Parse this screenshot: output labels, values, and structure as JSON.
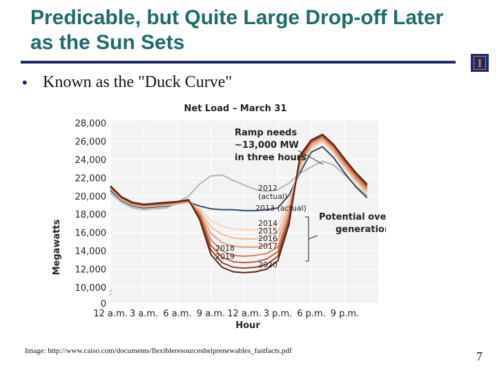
{
  "slide": {
    "title": "Predicable, but Quite Large Drop-off Later as the Sun Sets",
    "bullet": "Known as the \"Duck Curve\"",
    "caption": "Image: http://www.caiso.com/documents/flexibleresourceshelprenewables_fastfacts.pdf",
    "page_number": "7",
    "logo_letter": "I",
    "colors": {
      "title": "#1f6b6b",
      "rule": "#1c2a6b",
      "logo_bg": "#1c2a6b",
      "logo_accent": "#e57a30"
    }
  },
  "chart_data": {
    "type": "line",
    "title": "Net Load – March 31",
    "xlabel": "Hour",
    "ylabel": "Megawatts",
    "x_ticks": [
      "12 a.m.",
      "3 a.m.",
      "6 a.m.",
      "9 a.m.",
      "12 a.m.",
      "3 p.m.",
      "6 p.m.",
      "9 p.m."
    ],
    "y_ticks": [
      "0",
      "10,000",
      "12,000",
      "14,000",
      "16,000",
      "18,000",
      "20,000",
      "22,000",
      "24,000",
      "26,000",
      "28,000"
    ],
    "ylim": [
      0,
      28000
    ],
    "grid": true,
    "x": [
      0,
      1,
      2,
      3,
      4,
      5,
      6,
      7,
      8,
      9,
      10,
      11,
      12,
      13,
      14,
      15,
      16,
      17,
      18,
      19,
      20,
      21,
      22,
      23
    ],
    "series": [
      {
        "name": "2012 (actual)",
        "color": "#b4b4b4",
        "values": [
          20300,
          19300,
          18700,
          18500,
          18600,
          18700,
          19300,
          20000,
          21300,
          22200,
          22300,
          21700,
          21200,
          20700,
          20500,
          20700,
          21400,
          22500,
          23200,
          23800,
          23400,
          22300,
          21100,
          20000
        ]
      },
      {
        "name": "2013 (actual)",
        "color": "#2e4a6a",
        "values": [
          20600,
          19500,
          18900,
          18700,
          18800,
          18900,
          19100,
          19300,
          18900,
          18600,
          18500,
          18500,
          18400,
          18400,
          18500,
          18700,
          20100,
          22600,
          24800,
          25400,
          24200,
          22500,
          21000,
          19800
        ]
      },
      {
        "name": "2014",
        "color": "#f6d6bc",
        "values": [
          20800,
          19600,
          19000,
          18800,
          18900,
          19000,
          19100,
          19300,
          18600,
          17300,
          16700,
          16400,
          16300,
          16300,
          16500,
          16900,
          19500,
          23000,
          25200,
          25900,
          24700,
          23000,
          21500,
          20200
        ]
      },
      {
        "name": "2015",
        "color": "#efbd99",
        "values": [
          20850,
          19650,
          19050,
          18850,
          18950,
          19050,
          19150,
          19350,
          18400,
          16600,
          15800,
          15400,
          15300,
          15300,
          15500,
          16000,
          19000,
          23300,
          25400,
          26100,
          24900,
          23200,
          21700,
          20400
        ]
      },
      {
        "name": "2016",
        "color": "#e3a07a",
        "values": [
          20900,
          19700,
          19100,
          18900,
          19000,
          19100,
          19200,
          19400,
          18200,
          15900,
          14900,
          14500,
          14400,
          14400,
          14600,
          15200,
          18500,
          23600,
          25600,
          26300,
          25100,
          23400,
          21900,
          20600
        ]
      },
      {
        "name": "2017",
        "color": "#d2845e",
        "values": [
          20950,
          19750,
          19150,
          18950,
          19050,
          19150,
          19250,
          19450,
          18000,
          15200,
          14000,
          13500,
          13400,
          13500,
          13700,
          14400,
          18000,
          23900,
          25800,
          26450,
          25300,
          23600,
          22100,
          20800
        ]
      },
      {
        "name": "2018",
        "color": "#b9603f",
        "values": [
          21000,
          19800,
          19200,
          19000,
          19100,
          19200,
          19300,
          19500,
          17800,
          14600,
          13300,
          12800,
          12700,
          12800,
          13100,
          13900,
          17600,
          24100,
          25950,
          26550,
          25450,
          23800,
          22300,
          21000
        ]
      },
      {
        "name": "2019",
        "color": "#953f27",
        "values": [
          21050,
          19850,
          19250,
          19050,
          19150,
          19250,
          19350,
          19550,
          17600,
          14100,
          12700,
          12200,
          12100,
          12200,
          12500,
          13400,
          17200,
          24300,
          26050,
          26650,
          25550,
          23950,
          22450,
          21150
        ]
      },
      {
        "name": "2020",
        "color": "#5e1f12",
        "values": [
          21100,
          19900,
          19300,
          19100,
          19200,
          19300,
          19400,
          19600,
          17400,
          13600,
          12200,
          11700,
          11600,
          11700,
          12000,
          12900,
          16900,
          24500,
          26150,
          26750,
          25650,
          24050,
          22550,
          21300
        ]
      }
    ],
    "annotations": {
      "ramp": [
        "Ramp needs",
        "~13,000 MW",
        "in three hours"
      ],
      "overgen": [
        "Potential over–",
        "generation"
      ]
    }
  }
}
